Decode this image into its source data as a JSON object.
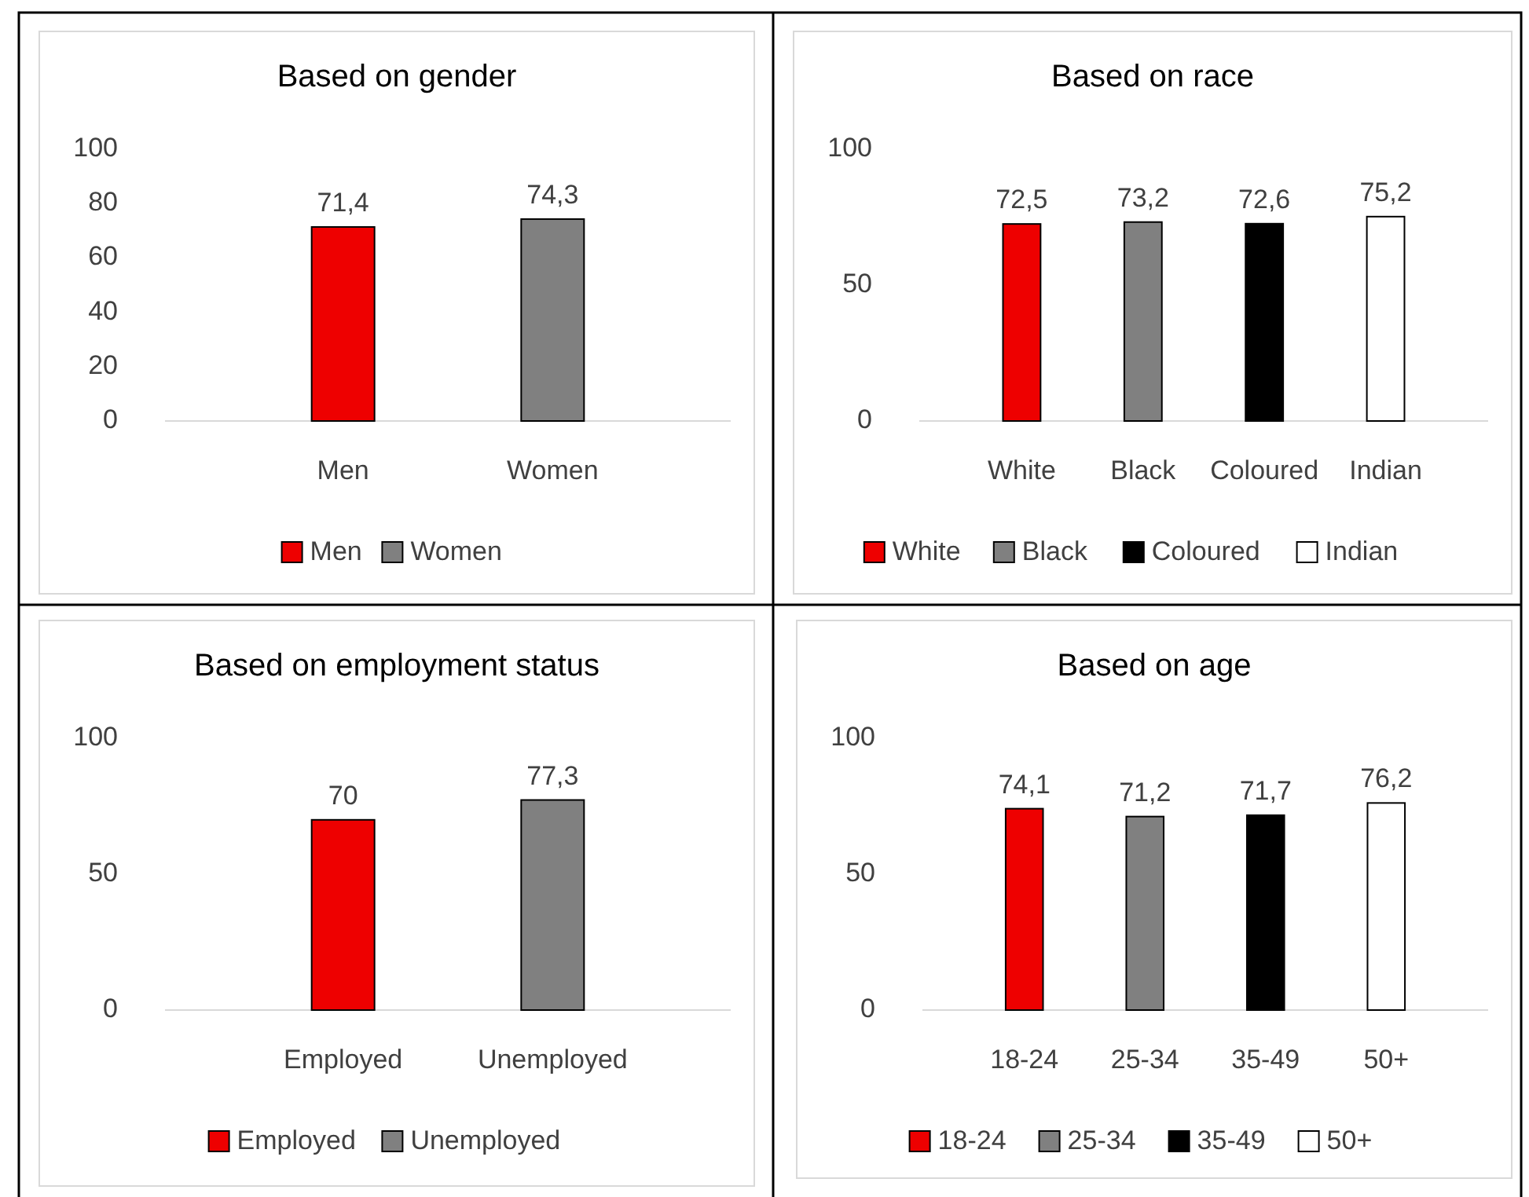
{
  "chart_data": [
    {
      "type": "bar",
      "title": "Based on gender",
      "categories": [
        "Men",
        "Women"
      ],
      "series": [
        {
          "name": "Men",
          "color": "#ee0000",
          "values": [
            71.4,
            null
          ],
          "value_labels": [
            "71,4",
            null
          ]
        },
        {
          "name": "Women",
          "color": "#808080",
          "values": [
            null,
            74.3
          ],
          "value_labels": [
            null,
            "74,3"
          ]
        }
      ],
      "ylim": [
        0,
        100
      ],
      "yticks": [
        0,
        20,
        40,
        60,
        80,
        100
      ],
      "legend": "bottom"
    },
    {
      "type": "bar",
      "title": "Based on race",
      "categories": [
        "White",
        "Black",
        "Coloured",
        "Indian"
      ],
      "series": [
        {
          "name": "White",
          "color": "#ee0000",
          "values": [
            72.5,
            null,
            null,
            null
          ],
          "value_labels": [
            "72,5",
            null,
            null,
            null
          ]
        },
        {
          "name": "Black",
          "color": "#808080",
          "values": [
            null,
            73.2,
            null,
            null
          ],
          "value_labels": [
            null,
            "73,2",
            null,
            null
          ]
        },
        {
          "name": "Coloured",
          "color": "#000000",
          "values": [
            null,
            null,
            72.6,
            null
          ],
          "value_labels": [
            null,
            null,
            "72,6",
            null
          ]
        },
        {
          "name": "Indian",
          "color": "#ffffff",
          "values": [
            null,
            null,
            null,
            75.2
          ],
          "value_labels": [
            null,
            null,
            null,
            "75,2"
          ]
        }
      ],
      "ylim": [
        0,
        100
      ],
      "yticks": [
        0,
        50,
        100
      ],
      "legend": "bottom"
    },
    {
      "type": "bar",
      "title": "Based on employment status",
      "categories": [
        "Employed",
        "Unemployed"
      ],
      "series": [
        {
          "name": "Employed",
          "color": "#ee0000",
          "values": [
            70,
            null
          ],
          "value_labels": [
            "70",
            null
          ]
        },
        {
          "name": "Unemployed",
          "color": "#808080",
          "values": [
            null,
            77.3
          ],
          "value_labels": [
            null,
            "77,3"
          ]
        }
      ],
      "ylim": [
        0,
        100
      ],
      "yticks": [
        0,
        50,
        100
      ],
      "legend": "bottom"
    },
    {
      "type": "bar",
      "title": "Based on age",
      "categories": [
        "18-24",
        "25-34",
        "35-49",
        "50+"
      ],
      "series": [
        {
          "name": "18-24",
          "color": "#ee0000",
          "values": [
            74.1,
            null,
            null,
            null
          ],
          "value_labels": [
            "74,1",
            null,
            null,
            null
          ]
        },
        {
          "name": "25-34",
          "color": "#808080",
          "values": [
            null,
            71.2,
            null,
            null
          ],
          "value_labels": [
            null,
            "71,2",
            null,
            null
          ]
        },
        {
          "name": "35-49",
          "color": "#000000",
          "values": [
            null,
            null,
            71.7,
            null
          ],
          "value_labels": [
            null,
            null,
            "71,7",
            null
          ]
        },
        {
          "name": "50+",
          "color": "#ffffff",
          "values": [
            null,
            null,
            null,
            76.2
          ],
          "value_labels": [
            null,
            null,
            null,
            "76,2"
          ]
        }
      ],
      "ylim": [
        0,
        100
      ],
      "yticks": [
        0,
        50,
        100
      ],
      "legend": "bottom"
    }
  ]
}
